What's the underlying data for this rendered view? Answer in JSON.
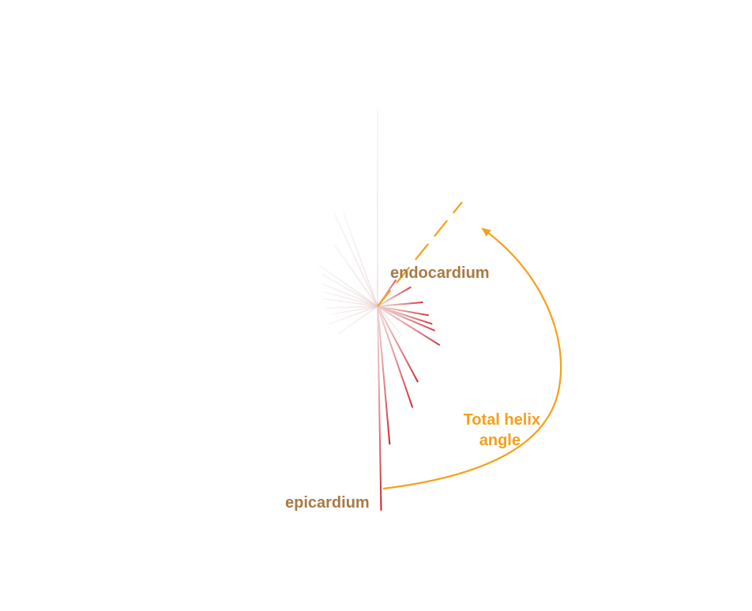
{
  "labels": {
    "endocardium": "endocardium",
    "epicardium": "epicardium",
    "angle_line1": "Total helix",
    "angle_line2": "angle"
  },
  "colors": {
    "wall_label": "#a87a44",
    "angle": "#f5a01a",
    "fiber_epi": "#cc1f2a",
    "fiber_endo": "#e9e2e2"
  },
  "fibers": [
    {
      "angle_deg": 0,
      "opacity": 0.12
    },
    {
      "angle_deg": -20,
      "opacity": 0.2
    },
    {
      "angle_deg": -25,
      "opacity": 0.18
    },
    {
      "angle_deg": -35,
      "opacity": 0.22
    },
    {
      "angle_deg": -55,
      "opacity": 0.3
    },
    {
      "angle_deg": -60,
      "opacity": 0.28
    },
    {
      "angle_deg": -68,
      "opacity": 0.32
    },
    {
      "angle_deg": -75,
      "opacity": 0.32
    },
    {
      "angle_deg": -82,
      "opacity": 0.35
    },
    {
      "angle_deg": -92,
      "opacity": 0.35
    },
    {
      "angle_deg": -100,
      "opacity": 0.35
    },
    {
      "angle_deg": -110,
      "opacity": 0.3
    },
    {
      "angle_deg": -125,
      "opacity": 0.32
    },
    {
      "angle_deg": 140,
      "opacity": 0.32
    },
    {
      "angle_deg": 35,
      "opacity": 0.75
    },
    {
      "angle_deg": 60,
      "opacity": 0.85
    },
    {
      "angle_deg": 85,
      "opacity": 0.9
    },
    {
      "angle_deg": 100,
      "opacity": 0.9
    },
    {
      "angle_deg": 108,
      "opacity": 0.9
    },
    {
      "angle_deg": 113,
      "opacity": 0.9
    },
    {
      "angle_deg": 122,
      "opacity": 0.9
    },
    {
      "angle_deg": 152,
      "opacity": 0.95
    },
    {
      "angle_deg": 161,
      "opacity": 0.95
    },
    {
      "angle_deg": 175,
      "opacity": 1
    },
    {
      "angle_deg": 179,
      "opacity": 1
    }
  ]
}
